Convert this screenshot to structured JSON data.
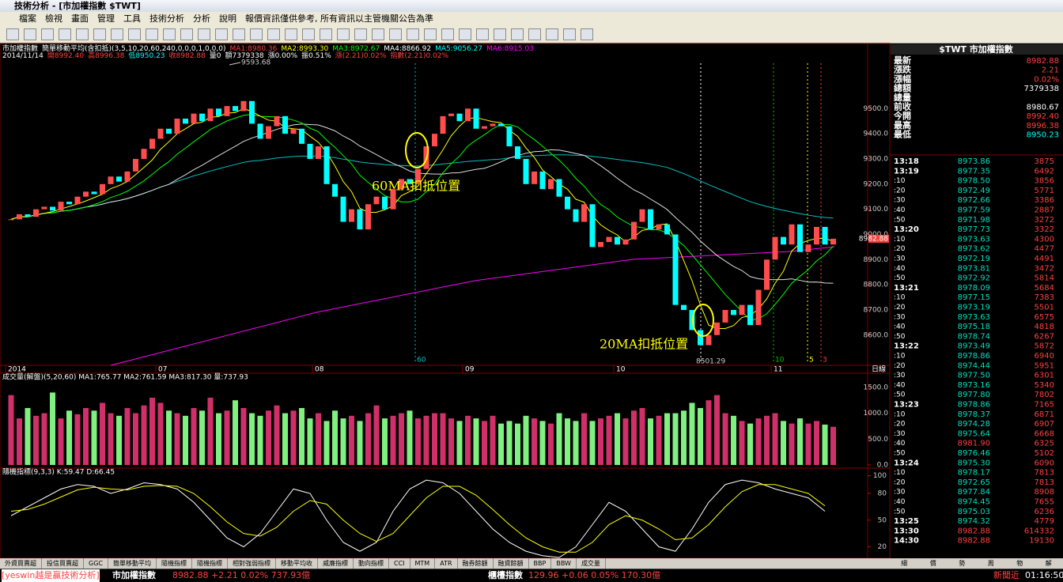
{
  "window": {
    "title": "技術分析 - [市加權指數 $TWT]"
  },
  "menu": [
    "檔案",
    "檢視",
    "畫面",
    "管理",
    "工具",
    "技術分析",
    "分析",
    "說明",
    "報價資訊僅供參考, 所有資訊以主管機關公告為準"
  ],
  "chart": {
    "info1": [
      {
        "text": "市加權指數",
        "color": "#ffffff"
      },
      {
        "text": "簡單移動平均(含扣抵)(3,5,10,20,60,240,0,0,0,1,0,0,0)",
        "color": "#ffffff"
      },
      {
        "text": "MA1:8980.36",
        "color": "#ff4040"
      },
      {
        "text": "MA2:8993.30",
        "color": "#ffff00"
      },
      {
        "text": "MA3:8972.67",
        "color": "#00ff00"
      },
      {
        "text": "MA4:8866.92",
        "color": "#ffffff"
      },
      {
        "text": "MA5:9056.27",
        "color": "#00ffff"
      },
      {
        "text": "MA6:8915.03",
        "color": "#ff00ff"
      }
    ],
    "info2": [
      {
        "text": "2014/11/14",
        "color": "#ffffff"
      },
      {
        "text": "開8992.40",
        "color": "#ff4040"
      },
      {
        "text": "高8996.38",
        "color": "#ff4040"
      },
      {
        "text": "低8950.23",
        "color": "#00ffff"
      },
      {
        "text": "收8982.88",
        "color": "#ff4040"
      },
      {
        "text": "量0",
        "color": "#ffffff"
      },
      {
        "text": "額7379338",
        "color": "#ffffff"
      },
      {
        "text": "漲0.00%",
        "color": "#ffffff"
      },
      {
        "text": "振0.51%",
        "color": "#ffffff"
      },
      {
        "text": "漲(2.21)0.02%",
        "color": "#ff4040"
      },
      {
        "text": "指數(2.21)0.02%",
        "color": "#ff4040"
      }
    ],
    "closes": [
      9060,
      9080,
      9070,
      9100,
      9110,
      9095,
      9130,
      9120,
      9150,
      9170,
      9160,
      9200,
      9230,
      9210,
      9250,
      9300,
      9340,
      9380,
      9420,
      9400,
      9460,
      9440,
      9480,
      9450,
      9500,
      9470,
      9510,
      9490,
      9530,
      9440,
      9380,
      9430,
      9470,
      9400,
      9420,
      9360,
      9300,
      9350,
      9200,
      9150,
      9050,
      9100,
      9020,
      9120,
      9150,
      9100,
      9180,
      9220,
      9200,
      9260,
      9350,
      9400,
      9470,
      9480,
      9450,
      9500,
      9420,
      9430,
      9440,
      9430,
      9350,
      9300,
      9200,
      9250,
      9180,
      9220,
      9150,
      9100,
      9050,
      9120,
      8950,
      8970,
      8990,
      8960,
      8980,
      9050,
      9100,
      9020,
      9040,
      9000,
      8720,
      8700,
      8620,
      8560,
      8600,
      8650,
      8700,
      8680,
      8720,
      8640,
      8780,
      8900,
      8990,
      8960,
      9040,
      8930,
      8960,
      9030,
      8960,
      8983
    ],
    "ylim": [
      8480,
      9680
    ],
    "yticks": [
      {
        "value": 9500,
        "label": "9500.0"
      },
      {
        "value": 9400,
        "label": "9400.0"
      },
      {
        "value": 9300,
        "label": "9300.0"
      },
      {
        "value": 9200,
        "label": "9200.0"
      },
      {
        "value": 9100,
        "label": "9100.0"
      },
      {
        "value": 9000,
        "label": "9000.0"
      },
      {
        "value": 8900,
        "label": "8900.0"
      },
      {
        "value": 8800,
        "label": "8800.0"
      },
      {
        "value": 8700,
        "label": "8700.0"
      },
      {
        "value": 8600,
        "label": "8600.0"
      }
    ],
    "last_price": 8982.88,
    "high_label": "9593.68",
    "low_label": "8501.29",
    "annotations": [
      "60MA扣抵位置",
      "20MA扣抵位置"
    ],
    "marker_labels": [
      "60",
      "10",
      "5",
      "3"
    ],
    "months": [
      "2014",
      "07",
      "08",
      "09",
      "10",
      "11"
    ],
    "period": "日線",
    "volume_title": "成交量(解盤)(5,20,60) MA1:765.77 MA2:761.59 MA3:817.30 量:737.93",
    "volume": [
      1350,
      900,
      1100,
      950,
      1000,
      1400,
      900,
      1050,
      980,
      1100,
      1050,
      1200,
      1000,
      950,
      1100,
      1000,
      1150,
      1300,
      1200,
      1050,
      1000,
      950,
      1100,
      1050,
      1300,
      1000,
      1050,
      1250,
      1100,
      1000,
      950,
      1050,
      1150,
      1000,
      1050,
      1100,
      900,
      1000,
      850,
      1050,
      900,
      950,
      850,
      1000,
      1150,
      900,
      950,
      1000,
      1050,
      900,
      950,
      1000,
      1000,
      900,
      850,
      950,
      900,
      850,
      950,
      800,
      850,
      800,
      950,
      900,
      850,
      800,
      1000,
      900,
      850,
      1000,
      850,
      900,
      950,
      1000,
      900,
      1050,
      1100,
      900,
      950,
      1000,
      1000,
      1050,
      1200,
      1100,
      1250,
      1350,
      1000,
      950,
      850,
      800,
      900,
      950,
      1000,
      850,
      800,
      900,
      800,
      850,
      780,
      738
    ],
    "vlim": [
      0,
      1650
    ],
    "vticks": [
      {
        "value": 1500,
        "label": "1500.0"
      },
      {
        "value": 1000,
        "label": "1000.0"
      },
      {
        "value": 500,
        "label": "500.0"
      },
      {
        "value": 0,
        "label": "0.0"
      }
    ],
    "kd_title": "隨機指標(9,3,3) K:59.47 D:66.45",
    "k": [
      55,
      65,
      75,
      85,
      90,
      88,
      80,
      85,
      92,
      90,
      85,
      70,
      50,
      30,
      20,
      35,
      60,
      85,
      80,
      50,
      25,
      15,
      25,
      60,
      85,
      95,
      92,
      80,
      60,
      40,
      25,
      15,
      10,
      8,
      20,
      45,
      70,
      60,
      40,
      20,
      15,
      40,
      70,
      90,
      95,
      92,
      85,
      80,
      75,
      60
    ],
    "d": [
      60,
      62,
      68,
      76,
      84,
      87,
      85,
      84,
      88,
      89,
      88,
      80,
      65,
      48,
      35,
      32,
      42,
      60,
      72,
      68,
      50,
      35,
      26,
      35,
      55,
      75,
      88,
      88,
      78,
      62,
      45,
      30,
      20,
      14,
      14,
      25,
      45,
      55,
      50,
      40,
      28,
      30,
      45,
      65,
      82,
      90,
      90,
      85,
      80,
      66
    ],
    "kdlim": [
      8,
      104
    ],
    "kdticks": [
      100,
      80,
      50,
      20
    ]
  },
  "quote": {
    "header": "$TWT 市加權指數",
    "items": [
      {
        "label": "最新",
        "value": "8982.88",
        "color": "#ff4040"
      },
      {
        "label": "漲跌",
        "value": "2.21",
        "color": "#ff4040"
      },
      {
        "label": "漲幅",
        "value": "0.02%",
        "color": "#ff4040"
      },
      {
        "label": "總額",
        "value": "7379338",
        "color": "#ffffff"
      },
      {
        "label": "總量",
        "value": "",
        "color": "#ffffff"
      },
      {
        "label": "前收",
        "value": "8980.67",
        "color": "#ffffff"
      },
      {
        "label": "今開",
        "value": "8992.40",
        "color": "#ff4040"
      },
      {
        "label": "最高",
        "value": "8996.38",
        "color": "#ff4040"
      },
      {
        "label": "最低",
        "value": "8950.23",
        "color": "#00ffff"
      }
    ],
    "prev_close": 8980.67,
    "ticks": [
      [
        "13:18",
        "8973.86",
        "3875"
      ],
      [
        "13:19",
        "8977.35",
        "6492"
      ],
      [
        ":10",
        "8978.50",
        "3856"
      ],
      [
        ":20",
        "8972.49",
        "5771"
      ],
      [
        ":30",
        "8972.66",
        "3386"
      ],
      [
        ":40",
        "8977.59",
        "2887"
      ],
      [
        ":50",
        "8971.98",
        "3272"
      ],
      [
        "13:20",
        "8977.73",
        "3322"
      ],
      [
        ":10",
        "8973.63",
        "4300"
      ],
      [
        ":20",
        "8973.62",
        "4477"
      ],
      [
        ":30",
        "8972.19",
        "4491"
      ],
      [
        ":40",
        "8973.81",
        "3472"
      ],
      [
        ":50",
        "8972.92",
        "5814"
      ],
      [
        "13:21",
        "8978.09",
        "5684"
      ],
      [
        ":10",
        "8977.15",
        "7383"
      ],
      [
        ":20",
        "8973.19",
        "5501"
      ],
      [
        ":30",
        "8973.63",
        "6575"
      ],
      [
        ":40",
        "8975.18",
        "4818"
      ],
      [
        ":50",
        "8978.74",
        "6267"
      ],
      [
        "13:22",
        "8973.49",
        "5872"
      ],
      [
        ":10",
        "8978.86",
        "6940"
      ],
      [
        ":20",
        "8974.44",
        "5951"
      ],
      [
        ":30",
        "8977.50",
        "6301"
      ],
      [
        ":40",
        "8973.16",
        "5340"
      ],
      [
        ":50",
        "8977.80",
        "7802"
      ],
      [
        "13:23",
        "8978.86",
        "7165"
      ],
      [
        ":10",
        "8978.37",
        "6871"
      ],
      [
        ":20",
        "8974.28",
        "6907"
      ],
      [
        ":30",
        "8975.64",
        "6668"
      ],
      [
        ":40",
        "8981.90",
        "6325"
      ],
      [
        ":50",
        "8976.46",
        "5102"
      ],
      [
        "13:24",
        "8975.30",
        "6090"
      ],
      [
        ":10",
        "8978.17",
        "7813"
      ],
      [
        ":20",
        "8972.65",
        "7813"
      ],
      [
        ":30",
        "8977.84",
        "8908"
      ],
      [
        ":40",
        "8974.45",
        "7655"
      ],
      [
        ":50",
        "8975.03",
        "6236"
      ],
      [
        "13:25",
        "8974.32",
        "4779"
      ],
      [
        "13:30",
        "8982.88",
        "614332"
      ],
      [
        "14:30",
        "8982.88",
        "19130"
      ]
    ],
    "tabs": [
      "細",
      "價",
      "勢",
      "周",
      "物",
      "解"
    ]
  },
  "bottom_tabs": [
    "外資買賣超",
    "投信買賣超",
    "GGC",
    "簡單移動平均",
    "隨機指標",
    "隨機指標",
    "相對強弱指標",
    "移動平均收",
    "威廉指標",
    "動向指標",
    "CCI",
    "MTM",
    "ATR",
    "融券餘額",
    "融資餘額",
    "BBP",
    "BBW",
    "成交量"
  ],
  "status": {
    "brand": "[yeswin越是贏技術分析]",
    "index1": "市加權指數",
    "index1_quote": "8982.88 +2.21 0.02% 737.93億",
    "index2": "櫃檯指數",
    "index2_quote": "129.96 +0.06 0.05% 170.30億",
    "news": "新聞近",
    "clock": "01:16:50"
  }
}
